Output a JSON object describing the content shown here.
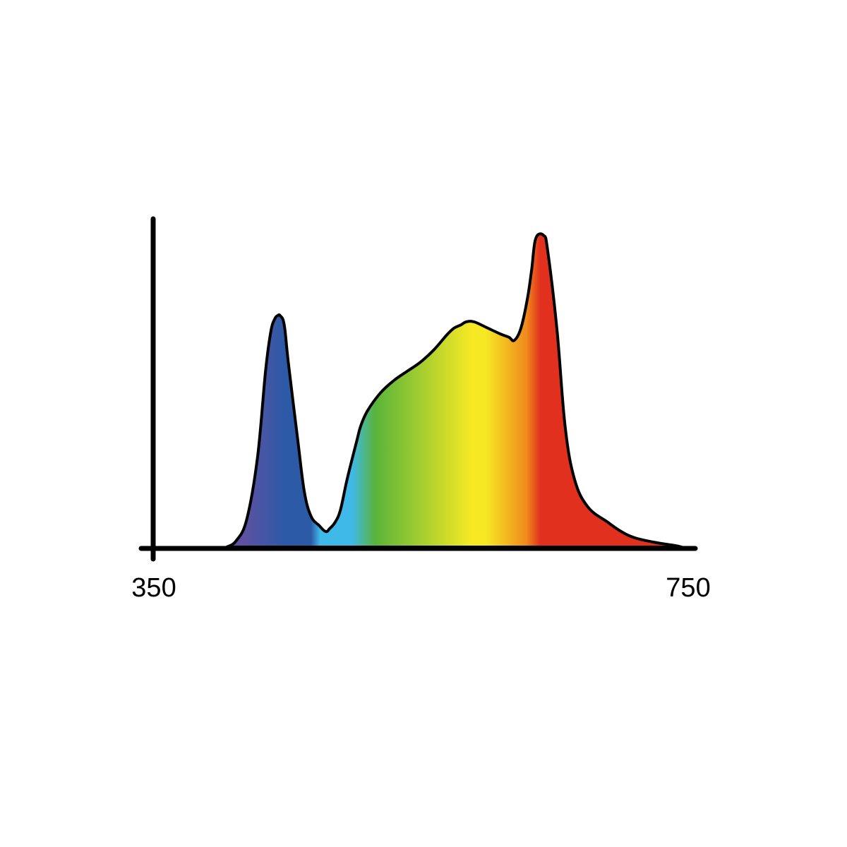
{
  "chart_data": {
    "type": "area",
    "title": "",
    "xlabel": "",
    "ylabel": "",
    "xlim": [
      350,
      750
    ],
    "ylim": [
      0,
      1
    ],
    "grid": false,
    "legend": "none",
    "x_tick_labels": [
      "350",
      "750"
    ],
    "series": [
      {
        "x": [
          405,
          412,
          420,
          428,
          434,
          438,
          441,
          443,
          445,
          448,
          451,
          458,
          463,
          468,
          474,
          479,
          482,
          486,
          490,
          495,
          502,
          505,
          510,
          520,
          530,
          540,
          550,
          560,
          570,
          575,
          580,
          584,
          590,
          600,
          610,
          616,
          620,
          625,
          630,
          633,
          636,
          642,
          645,
          652,
          658,
          665,
          675,
          690,
          700,
          710,
          725,
          740,
          745
        ],
        "y": [
          0.0,
          0.02,
          0.09,
          0.29,
          0.57,
          0.7,
          0.74,
          0.75,
          0.75,
          0.72,
          0.6,
          0.35,
          0.18,
          0.1,
          0.07,
          0.05,
          0.06,
          0.08,
          0.12,
          0.22,
          0.34,
          0.39,
          0.44,
          0.5,
          0.54,
          0.57,
          0.6,
          0.64,
          0.69,
          0.71,
          0.72,
          0.73,
          0.73,
          0.71,
          0.69,
          0.68,
          0.67,
          0.71,
          0.81,
          0.9,
          1.0,
          1.01,
          0.96,
          0.7,
          0.39,
          0.22,
          0.13,
          0.08,
          0.05,
          0.03,
          0.015,
          0.005,
          0.0
        ]
      }
    ],
    "colors": {
      "violet": "#6b4fa0",
      "blue": "#2d5aa7",
      "cyan": "#3fb9e8",
      "green": "#5ab43a",
      "yellow": "#f6e924",
      "orange": "#f08a1c",
      "red": "#e2301e",
      "outline": "#000000"
    }
  }
}
